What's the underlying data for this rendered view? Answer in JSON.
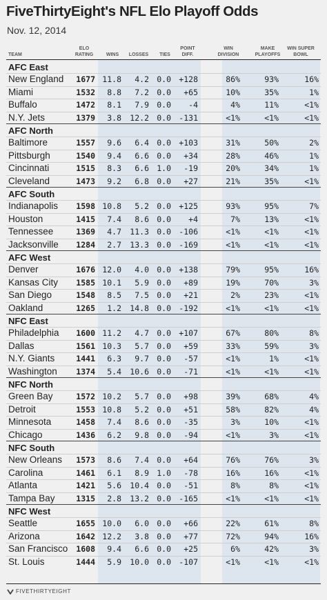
{
  "header": {
    "title": "FiveThirtyEight's NFL Elo Playoff Odds",
    "subtitle": "Nov. 12, 2014"
  },
  "columns": [
    {
      "key": "team",
      "label": "TEAM"
    },
    {
      "key": "elo",
      "label": "ELO\nRATING"
    },
    {
      "key": "wins",
      "label": "WINS"
    },
    {
      "key": "losses",
      "label": "LOSSES"
    },
    {
      "key": "ties",
      "label": "TIES"
    },
    {
      "key": "point_diff",
      "label": "POINT\nDIFF."
    },
    {
      "key": "win_division",
      "label": "WIN\nDIVISION"
    },
    {
      "key": "make_playoffs",
      "label": "MAKE\nPLAYOFFS"
    },
    {
      "key": "win_super_bowl",
      "label": "WIN SUPER\nBOWL"
    }
  ],
  "footer": {
    "brand": "FIVETHIRTYEIGHT"
  },
  "colors": {
    "shade": "#dde5ee",
    "background": "#f0f0f0",
    "text": "#222222"
  },
  "chart_data": {
    "type": "table",
    "title": "FiveThirtyEight's NFL Elo Playoff Odds",
    "subtitle": "Nov. 12, 2014",
    "divisions": [
      {
        "name": "AFC East",
        "teams": [
          {
            "team": "New England",
            "elo": "1677",
            "wins": "11.8",
            "losses": "4.2",
            "ties": "0.0",
            "point_diff": "+128",
            "win_division": "86%",
            "make_playoffs": "93%",
            "win_super_bowl": "16%"
          },
          {
            "team": "Miami",
            "elo": "1532",
            "wins": "8.8",
            "losses": "7.2",
            "ties": "0.0",
            "point_diff": "+65",
            "win_division": "10%",
            "make_playoffs": "35%",
            "win_super_bowl": "1%"
          },
          {
            "team": "Buffalo",
            "elo": "1472",
            "wins": "8.1",
            "losses": "7.9",
            "ties": "0.0",
            "point_diff": "-4",
            "win_division": "4%",
            "make_playoffs": "11%",
            "win_super_bowl": "<1%"
          },
          {
            "team": "N.Y. Jets",
            "elo": "1379",
            "wins": "3.8",
            "losses": "12.2",
            "ties": "0.0",
            "point_diff": "-131",
            "win_division": "<1%",
            "make_playoffs": "<1%",
            "win_super_bowl": "<1%"
          }
        ]
      },
      {
        "name": "AFC North",
        "teams": [
          {
            "team": "Baltimore",
            "elo": "1557",
            "wins": "9.6",
            "losses": "6.4",
            "ties": "0.0",
            "point_diff": "+103",
            "win_division": "31%",
            "make_playoffs": "50%",
            "win_super_bowl": "2%"
          },
          {
            "team": "Pittsburgh",
            "elo": "1540",
            "wins": "9.4",
            "losses": "6.6",
            "ties": "0.0",
            "point_diff": "+34",
            "win_division": "28%",
            "make_playoffs": "46%",
            "win_super_bowl": "1%"
          },
          {
            "team": "Cincinnati",
            "elo": "1515",
            "wins": "8.3",
            "losses": "6.6",
            "ties": "1.0",
            "point_diff": "-19",
            "win_division": "20%",
            "make_playoffs": "34%",
            "win_super_bowl": "1%"
          },
          {
            "team": "Cleveland",
            "elo": "1473",
            "wins": "9.2",
            "losses": "6.8",
            "ties": "0.0",
            "point_diff": "+27",
            "win_division": "21%",
            "make_playoffs": "35%",
            "win_super_bowl": "<1%"
          }
        ]
      },
      {
        "name": "AFC South",
        "teams": [
          {
            "team": "Indianapolis",
            "elo": "1598",
            "wins": "10.8",
            "losses": "5.2",
            "ties": "0.0",
            "point_diff": "+125",
            "win_division": "93%",
            "make_playoffs": "95%",
            "win_super_bowl": "7%"
          },
          {
            "team": "Houston",
            "elo": "1415",
            "wins": "7.4",
            "losses": "8.6",
            "ties": "0.0",
            "point_diff": "+4",
            "win_division": "7%",
            "make_playoffs": "13%",
            "win_super_bowl": "<1%"
          },
          {
            "team": "Tennessee",
            "elo": "1369",
            "wins": "4.7",
            "losses": "11.3",
            "ties": "0.0",
            "point_diff": "-106",
            "win_division": "<1%",
            "make_playoffs": "<1%",
            "win_super_bowl": "<1%"
          },
          {
            "team": "Jacksonville",
            "elo": "1284",
            "wins": "2.7",
            "losses": "13.3",
            "ties": "0.0",
            "point_diff": "-169",
            "win_division": "<1%",
            "make_playoffs": "<1%",
            "win_super_bowl": "<1%"
          }
        ]
      },
      {
        "name": "AFC West",
        "teams": [
          {
            "team": "Denver",
            "elo": "1676",
            "wins": "12.0",
            "losses": "4.0",
            "ties": "0.0",
            "point_diff": "+138",
            "win_division": "79%",
            "make_playoffs": "95%",
            "win_super_bowl": "16%"
          },
          {
            "team": "Kansas City",
            "elo": "1585",
            "wins": "10.1",
            "losses": "5.9",
            "ties": "0.0",
            "point_diff": "+89",
            "win_division": "19%",
            "make_playoffs": "70%",
            "win_super_bowl": "3%"
          },
          {
            "team": "San Diego",
            "elo": "1548",
            "wins": "8.5",
            "losses": "7.5",
            "ties": "0.0",
            "point_diff": "+21",
            "win_division": "2%",
            "make_playoffs": "23%",
            "win_super_bowl": "<1%"
          },
          {
            "team": "Oakland",
            "elo": "1265",
            "wins": "1.2",
            "losses": "14.8",
            "ties": "0.0",
            "point_diff": "-192",
            "win_division": "<1%",
            "make_playoffs": "<1%",
            "win_super_bowl": "<1%"
          }
        ]
      },
      {
        "name": "NFC East",
        "teams": [
          {
            "team": "Philadelphia",
            "elo": "1600",
            "wins": "11.2",
            "losses": "4.7",
            "ties": "0.0",
            "point_diff": "+107",
            "win_division": "67%",
            "make_playoffs": "80%",
            "win_super_bowl": "8%"
          },
          {
            "team": "Dallas",
            "elo": "1561",
            "wins": "10.3",
            "losses": "5.7",
            "ties": "0.0",
            "point_diff": "+59",
            "win_division": "33%",
            "make_playoffs": "59%",
            "win_super_bowl": "3%"
          },
          {
            "team": "N.Y. Giants",
            "elo": "1441",
            "wins": "6.3",
            "losses": "9.7",
            "ties": "0.0",
            "point_diff": "-57",
            "win_division": "<1%",
            "make_playoffs": "1%",
            "win_super_bowl": "<1%"
          },
          {
            "team": "Washington",
            "elo": "1374",
            "wins": "5.4",
            "losses": "10.6",
            "ties": "0.0",
            "point_diff": "-71",
            "win_division": "<1%",
            "make_playoffs": "<1%",
            "win_super_bowl": "<1%"
          }
        ]
      },
      {
        "name": "NFC North",
        "teams": [
          {
            "team": "Green Bay",
            "elo": "1572",
            "wins": "10.2",
            "losses": "5.7",
            "ties": "0.0",
            "point_diff": "+98",
            "win_division": "39%",
            "make_playoffs": "68%",
            "win_super_bowl": "4%"
          },
          {
            "team": "Detroit",
            "elo": "1553",
            "wins": "10.8",
            "losses": "5.2",
            "ties": "0.0",
            "point_diff": "+51",
            "win_division": "58%",
            "make_playoffs": "82%",
            "win_super_bowl": "4%"
          },
          {
            "team": "Minnesota",
            "elo": "1458",
            "wins": "7.4",
            "losses": "8.6",
            "ties": "0.0",
            "point_diff": "-35",
            "win_division": "3%",
            "make_playoffs": "10%",
            "win_super_bowl": "<1%"
          },
          {
            "team": "Chicago",
            "elo": "1436",
            "wins": "6.2",
            "losses": "9.8",
            "ties": "0.0",
            "point_diff": "-94",
            "win_division": "<1%",
            "make_playoffs": "3%",
            "win_super_bowl": "<1%"
          }
        ]
      },
      {
        "name": "NFC South",
        "teams": [
          {
            "team": "New Orleans",
            "elo": "1573",
            "wins": "8.6",
            "losses": "7.4",
            "ties": "0.0",
            "point_diff": "+64",
            "win_division": "76%",
            "make_playoffs": "76%",
            "win_super_bowl": "3%"
          },
          {
            "team": "Carolina",
            "elo": "1461",
            "wins": "6.1",
            "losses": "8.9",
            "ties": "1.0",
            "point_diff": "-78",
            "win_division": "16%",
            "make_playoffs": "16%",
            "win_super_bowl": "<1%"
          },
          {
            "team": "Atlanta",
            "elo": "1421",
            "wins": "5.6",
            "losses": "10.4",
            "ties": "0.0",
            "point_diff": "-51",
            "win_division": "8%",
            "make_playoffs": "8%",
            "win_super_bowl": "<1%"
          },
          {
            "team": "Tampa Bay",
            "elo": "1315",
            "wins": "2.8",
            "losses": "13.2",
            "ties": "0.0",
            "point_diff": "-165",
            "win_division": "<1%",
            "make_playoffs": "<1%",
            "win_super_bowl": "<1%"
          }
        ]
      },
      {
        "name": "NFC West",
        "teams": [
          {
            "team": "Seattle",
            "elo": "1655",
            "wins": "10.0",
            "losses": "6.0",
            "ties": "0.0",
            "point_diff": "+66",
            "win_division": "22%",
            "make_playoffs": "61%",
            "win_super_bowl": "8%"
          },
          {
            "team": "Arizona",
            "elo": "1642",
            "wins": "12.2",
            "losses": "3.8",
            "ties": "0.0",
            "point_diff": "+77",
            "win_division": "72%",
            "make_playoffs": "94%",
            "win_super_bowl": "16%"
          },
          {
            "team": "San Francisco",
            "elo": "1608",
            "wins": "9.4",
            "losses": "6.6",
            "ties": "0.0",
            "point_diff": "+25",
            "win_division": "6%",
            "make_playoffs": "42%",
            "win_super_bowl": "3%"
          },
          {
            "team": "St. Louis",
            "elo": "1444",
            "wins": "5.9",
            "losses": "10.0",
            "ties": "0.0",
            "point_diff": "-107",
            "win_division": "<1%",
            "make_playoffs": "<1%",
            "win_super_bowl": "<1%"
          }
        ]
      }
    ]
  }
}
